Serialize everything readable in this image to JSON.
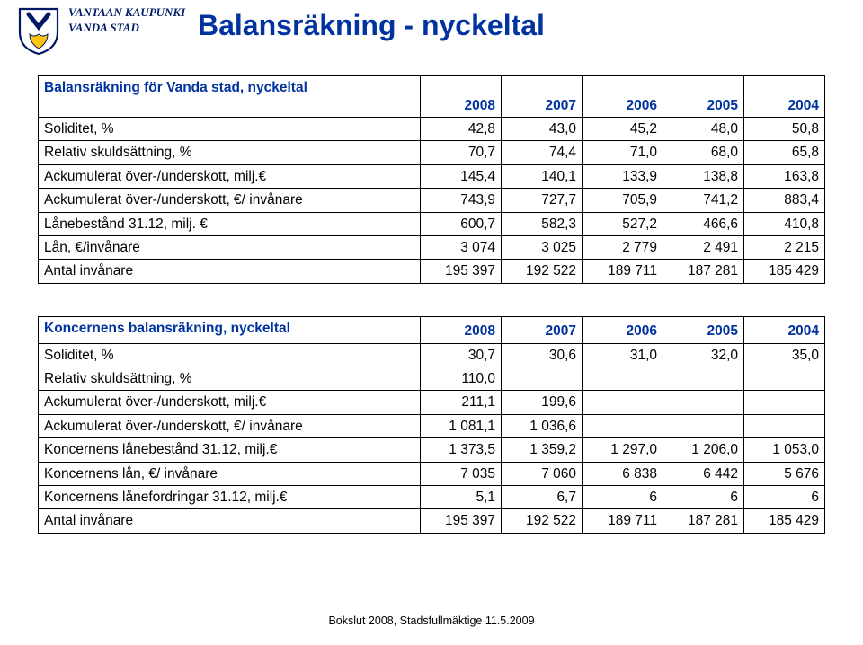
{
  "org_line1": "VANTAAN KAUPUNKI",
  "org_line2": "VANDA STAD",
  "page_title": "Balansräkning - nyckeltal",
  "footer": "Bokslut 2008, Stadsfullmäktige 11.5.2009",
  "logo": {
    "shield_stroke": "#001a66",
    "shield_fill": "#ffffff",
    "accent": "#ffc20e"
  },
  "table1": {
    "row_head": "Balansräkning för Vanda stad, nyckeltal",
    "years": [
      "2008",
      "2007",
      "2006",
      "2005",
      "2004"
    ],
    "rows": [
      {
        "label": "Soliditet, %",
        "v": [
          "42,8",
          "43,0",
          "45,2",
          "48,0",
          "50,8"
        ]
      },
      {
        "label": "Relativ skuldsättning, %",
        "v": [
          "70,7",
          "74,4",
          "71,0",
          "68,0",
          "65,8"
        ]
      },
      {
        "label": "Ackumulerat över-/underskott, milj.€",
        "v": [
          "145,4",
          "140,1",
          "133,9",
          "138,8",
          "163,8"
        ]
      },
      {
        "label": "Ackumulerat över-/underskott, €/ invånare",
        "v": [
          "743,9",
          "727,7",
          "705,9",
          "741,2",
          "883,4"
        ]
      },
      {
        "label": "Lånebestånd 31.12, milj. €",
        "v": [
          "600,7",
          "582,3",
          "527,2",
          "466,6",
          "410,8"
        ]
      },
      {
        "label": "Lån, €/invånare",
        "v": [
          "3 074",
          "3 025",
          "2 779",
          "2 491",
          "2 215"
        ]
      },
      {
        "label": "Antal invånare",
        "v": [
          "195 397",
          "192 522",
          "189 711",
          "187 281",
          "185 429"
        ]
      }
    ]
  },
  "table2": {
    "row_head": "Koncernens balansräkning, nyckeltal",
    "years": [
      "2008",
      "2007",
      "2006",
      "2005",
      "2004"
    ],
    "rows": [
      {
        "label": "Soliditet, %",
        "v": [
          "30,7",
          "30,6",
          "31,0",
          "32,0",
          "35,0"
        ]
      },
      {
        "label": "Relativ skuldsättning, %",
        "v": [
          "110,0",
          "",
          "",
          "",
          ""
        ]
      },
      {
        "label": "Ackumulerat över-/underskott, milj.€",
        "v": [
          "211,1",
          "199,6",
          "",
          "",
          ""
        ]
      },
      {
        "label": "Ackumulerat över-/underskott, €/ invånare",
        "v": [
          "1 081,1",
          "1 036,6",
          "",
          "",
          ""
        ]
      },
      {
        "label": "Koncernens lånebestånd 31.12, milj.€",
        "v": [
          "1 373,5",
          "1 359,2",
          "1 297,0",
          "1 206,0",
          "1 053,0"
        ]
      },
      {
        "label": "Koncernens lån, €/ invånare",
        "v": [
          "7 035",
          "7 060",
          "6 838",
          "6 442",
          "5 676"
        ]
      },
      {
        "label": "Koncernens lånefordringar 31.12, milj.€",
        "v": [
          "5,1",
          "6,7",
          "6",
          "6",
          "6"
        ]
      },
      {
        "label": "Antal invånare",
        "v": [
          "195 397",
          "192 522",
          "189 711",
          "187 281",
          "185 429"
        ]
      }
    ]
  },
  "colors": {
    "header_text": "#0033a0",
    "body_text": "#000000",
    "border": "#000000",
    "background": "#ffffff"
  }
}
